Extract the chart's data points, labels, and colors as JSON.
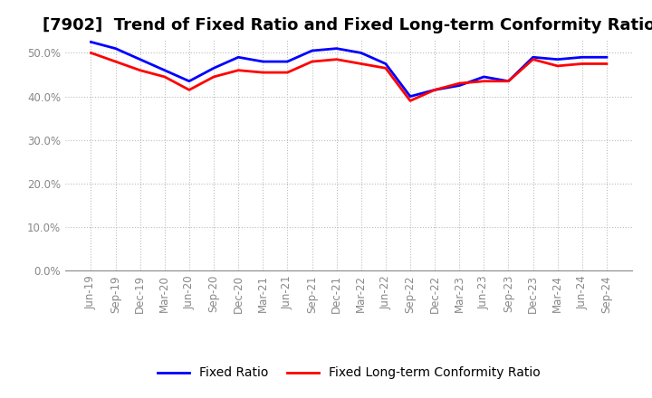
{
  "title": "[7902]  Trend of Fixed Ratio and Fixed Long-term Conformity Ratio",
  "labels": [
    "Jun-19",
    "Sep-19",
    "Dec-19",
    "Mar-20",
    "Jun-20",
    "Sep-20",
    "Dec-20",
    "Mar-21",
    "Jun-21",
    "Sep-21",
    "Dec-21",
    "Mar-22",
    "Jun-22",
    "Sep-22",
    "Dec-22",
    "Mar-23",
    "Jun-23",
    "Sep-23",
    "Dec-23",
    "Mar-24",
    "Jun-24",
    "Sep-24"
  ],
  "fixed_ratio": [
    52.5,
    51.0,
    48.5,
    46.0,
    43.5,
    46.5,
    49.0,
    48.0,
    48.0,
    50.5,
    51.0,
    50.0,
    47.5,
    40.0,
    41.5,
    42.5,
    44.5,
    43.5,
    49.0,
    48.5,
    49.0,
    49.0
  ],
  "fixed_ltcr": [
    50.0,
    48.0,
    46.0,
    44.5,
    41.5,
    44.5,
    46.0,
    45.5,
    45.5,
    48.0,
    48.5,
    47.5,
    46.5,
    39.0,
    41.5,
    43.0,
    43.5,
    43.5,
    48.5,
    47.0,
    47.5,
    47.5
  ],
  "fixed_ratio_color": "#0000FF",
  "fixed_ltcr_color": "#FF0000",
  "ylim": [
    0,
    53
  ],
  "yticks": [
    0,
    10,
    20,
    30,
    40,
    50
  ],
  "background_color": "#FFFFFF",
  "plot_bg_color": "#FFFFFF",
  "grid_color": "#BBBBBB",
  "tick_color": "#888888",
  "legend_fixed_ratio": "Fixed Ratio",
  "legend_fixed_ltcr": "Fixed Long-term Conformity Ratio",
  "title_fontsize": 13,
  "tick_fontsize": 8.5,
  "legend_fontsize": 10
}
